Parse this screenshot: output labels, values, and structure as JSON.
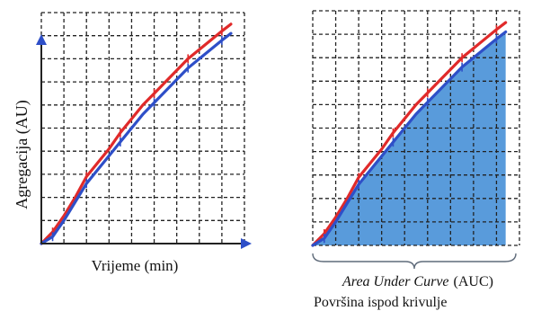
{
  "colors": {
    "series_red": "#e02a2a",
    "series_blue": "#2e4fc8",
    "auc_fill": "#4b92d8",
    "grid": "#222222",
    "axis_arrow": "#2e4fc8"
  },
  "chart_data": [
    {
      "type": "line",
      "title": "",
      "xlabel": "Vrijeme (min)",
      "ylabel": "Agregacija (AU)",
      "grid": true,
      "axes_arrows": true,
      "xlim": [
        0,
        9
      ],
      "ylim": [
        0,
        10
      ],
      "series": [
        {
          "color": "red",
          "x": [
            0,
            0.5,
            1,
            1.5,
            2,
            2.5,
            3,
            3.5,
            4,
            4.5,
            5,
            5.5,
            6,
            6.5,
            7,
            7.5,
            8,
            8.4
          ],
          "y": [
            0,
            0.5,
            1.2,
            2.0,
            2.9,
            3.5,
            4.1,
            4.8,
            5.4,
            6.0,
            6.5,
            7.0,
            7.5,
            8.0,
            8.4,
            8.8,
            9.2,
            9.5
          ]
        },
        {
          "color": "blue",
          "x": [
            0,
            0.5,
            1,
            1.5,
            2,
            2.5,
            3,
            3.5,
            4,
            4.5,
            5,
            5.5,
            6,
            6.5,
            7,
            7.5,
            8,
            8.4
          ],
          "y": [
            0,
            0.3,
            1.0,
            1.8,
            2.6,
            3.2,
            3.8,
            4.4,
            5.0,
            5.6,
            6.1,
            6.6,
            7.1,
            7.6,
            8.0,
            8.4,
            8.8,
            9.1
          ]
        }
      ]
    },
    {
      "type": "area",
      "title": "",
      "caption_italic": "Area Under Curve",
      "caption_abbr": "(AUC)",
      "caption_local": "Površina ispod krivulje",
      "grid": true,
      "xlim": [
        0,
        9
      ],
      "ylim": [
        0,
        10
      ],
      "series": [
        {
          "color": "red",
          "x": [
            0,
            0.5,
            1,
            1.5,
            2,
            2.5,
            3,
            3.5,
            4,
            4.5,
            5,
            5.5,
            6,
            6.5,
            7,
            7.5,
            8,
            8.4
          ],
          "y": [
            0,
            0.5,
            1.2,
            2.0,
            2.9,
            3.5,
            4.1,
            4.8,
            5.4,
            6.0,
            6.5,
            7.0,
            7.5,
            8.0,
            8.4,
            8.8,
            9.2,
            9.5
          ]
        },
        {
          "color": "blue",
          "filled": true,
          "x": [
            0,
            0.5,
            1,
            1.5,
            2,
            2.5,
            3,
            3.5,
            4,
            4.5,
            5,
            5.5,
            6,
            6.5,
            7,
            7.5,
            8,
            8.4
          ],
          "y": [
            0,
            0.3,
            1.0,
            1.8,
            2.6,
            3.2,
            3.8,
            4.4,
            5.0,
            5.6,
            6.1,
            6.6,
            7.1,
            7.6,
            8.0,
            8.4,
            8.8,
            9.1
          ]
        }
      ]
    }
  ]
}
